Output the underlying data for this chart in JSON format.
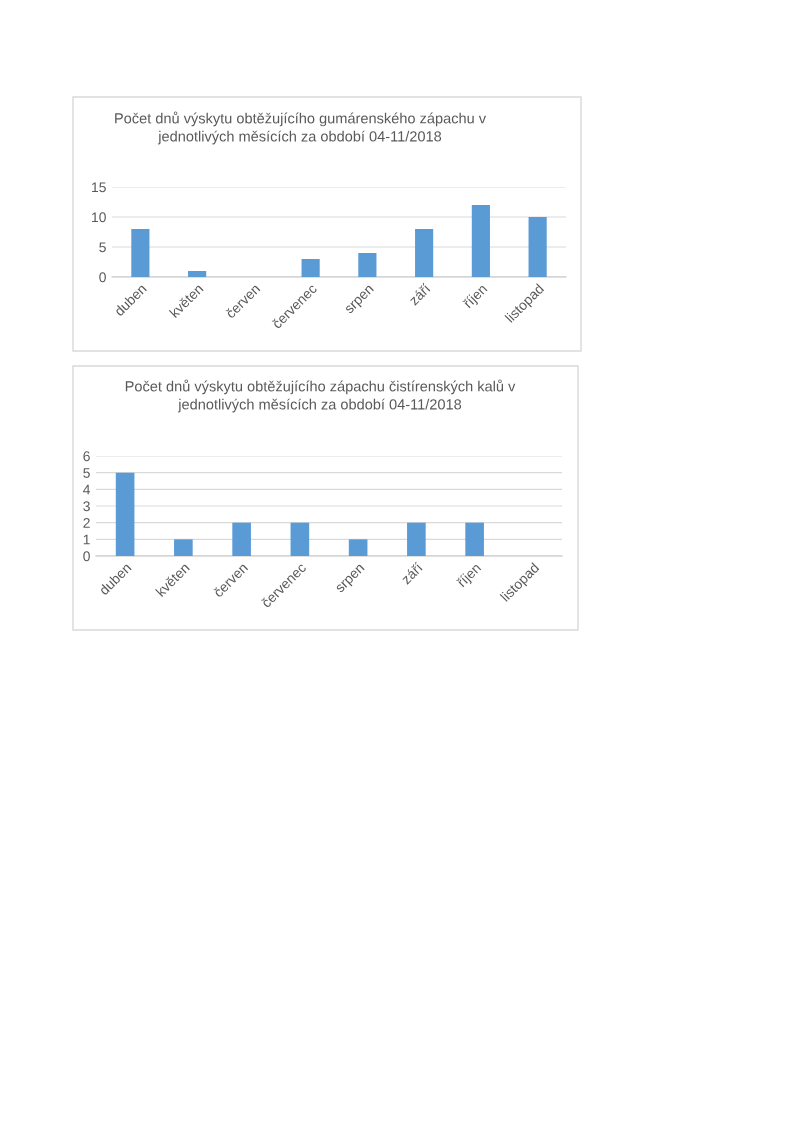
{
  "chart_data": [
    {
      "type": "bar",
      "title": "Počet dnů výskytu obtěžujícího gumárenského zápachu v\njednotlivých měsících za období 04-11/2018",
      "categories": [
        "duben",
        "květen",
        "červen",
        "červenec",
        "srpen",
        "září",
        "říjen",
        "listopad"
      ],
      "values": [
        8,
        1,
        0,
        3,
        4,
        8,
        12,
        10
      ],
      "color": "#5b9bd5",
      "ylim": [
        0,
        15
      ],
      "yticks": [
        0,
        5,
        10,
        15
      ],
      "grid": "y",
      "legend": false
    },
    {
      "type": "bar",
      "title": "Počet dnů výskytu obtěžujícího zápachu čistírenských kalů v\njednotlivých měsících za období 04-11/2018",
      "categories": [
        "duben",
        "květen",
        "červen",
        "červenec",
        "srpen",
        "září",
        "říjen",
        "listopad"
      ],
      "values": [
        5,
        1,
        2,
        2,
        1,
        2,
        2,
        0
      ],
      "color": "#5b9bd5",
      "ylim": [
        0,
        6
      ],
      "yticks": [
        0,
        1,
        2,
        3,
        4,
        5,
        6
      ],
      "grid": "y",
      "legend": false
    }
  ]
}
